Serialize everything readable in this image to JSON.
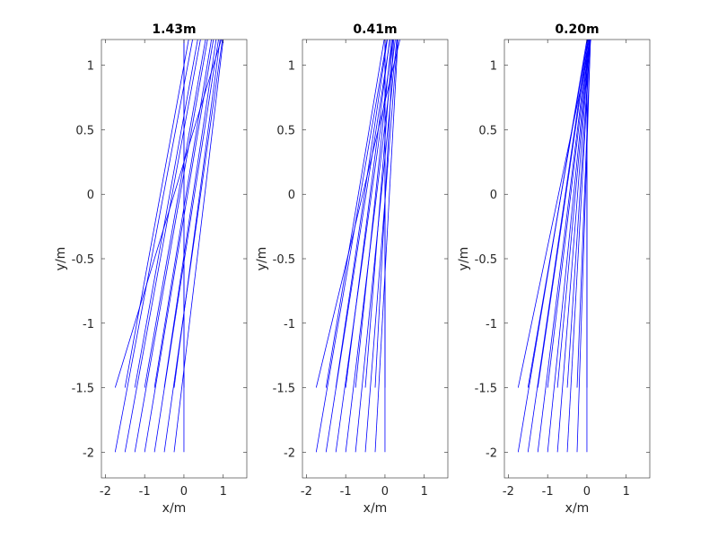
{
  "chart_data": [
    {
      "type": "line",
      "title": "1.43m",
      "xlabel": "x/m",
      "ylabel": "y/m",
      "xlim": [
        -2.1,
        1.6
      ],
      "ylim": [
        -2.2,
        1.2
      ],
      "xticks": [
        -2,
        -1,
        0,
        1
      ],
      "yticks": [
        -2,
        -1.5,
        -1,
        -0.5,
        0,
        0.5,
        1
      ],
      "xtick_labels": [
        "-2",
        "-1",
        "0",
        "1"
      ],
      "ytick_labels": [
        "-2",
        "-1.5",
        "-1",
        "-0.5",
        "0",
        "0.5",
        "1"
      ],
      "grid": false,
      "line_color": "#0000ff",
      "series": [
        {
          "x": [
            -1.75,
            0.95
          ],
          "y": [
            -1.5,
            1.2
          ]
        },
        {
          "x": [
            -1.75,
            0.22
          ],
          "y": [
            -2.0,
            1.2
          ]
        },
        {
          "x": [
            -1.5,
            0.42
          ],
          "y": [
            -2.0,
            1.2
          ]
        },
        {
          "x": [
            -1.25,
            0.6
          ],
          "y": [
            -2.0,
            1.2
          ]
        },
        {
          "x": [
            -1.0,
            0.75
          ],
          "y": [
            -2.0,
            1.2
          ]
        },
        {
          "x": [
            -0.75,
            0.88
          ],
          "y": [
            -2.0,
            1.2
          ]
        },
        {
          "x": [
            -0.5,
            0.98
          ],
          "y": [
            -2.0,
            1.2
          ]
        },
        {
          "x": [
            -0.25,
            1.0
          ],
          "y": [
            -2.0,
            1.2
          ]
        },
        {
          "x": [
            0.0,
            0.0
          ],
          "y": [
            -2.0,
            1.2
          ]
        },
        {
          "x": [
            -1.5,
            0.12
          ],
          "y": [
            -1.5,
            1.2
          ]
        },
        {
          "x": [
            -1.25,
            0.35
          ],
          "y": [
            -1.5,
            1.2
          ]
        },
        {
          "x": [
            -1.0,
            0.55
          ],
          "y": [
            -1.5,
            1.2
          ]
        },
        {
          "x": [
            -0.75,
            0.7
          ],
          "y": [
            -1.5,
            1.2
          ]
        },
        {
          "x": [
            -0.5,
            0.82
          ],
          "y": [
            -1.5,
            1.2
          ]
        },
        {
          "x": [
            -0.25,
            0.92
          ],
          "y": [
            -1.5,
            1.2
          ]
        },
        {
          "x": [
            0.0,
            0.0
          ],
          "y": [
            -1.5,
            1.2
          ]
        }
      ]
    },
    {
      "type": "line",
      "title": "0.41m",
      "xlabel": "x/m",
      "ylabel": "y/m",
      "xlim": [
        -2.1,
        1.6
      ],
      "ylim": [
        -2.2,
        1.2
      ],
      "xticks": [
        -2,
        -1,
        0,
        1
      ],
      "yticks": [
        -2,
        -1.5,
        -1,
        -0.5,
        0,
        0.5,
        1
      ],
      "xtick_labels": [
        "-2",
        "-1",
        "0",
        "1"
      ],
      "ytick_labels": [
        "-2",
        "-1.5",
        "-1",
        "-0.5",
        "0",
        "0.5",
        "1"
      ],
      "grid": false,
      "line_color": "#0000ff",
      "series": [
        {
          "x": [
            -1.75,
            0.38
          ],
          "y": [
            -1.5,
            1.2
          ]
        },
        {
          "x": [
            -1.75,
            0.05
          ],
          "y": [
            -2.0,
            1.2
          ]
        },
        {
          "x": [
            -1.5,
            0.13
          ],
          "y": [
            -2.0,
            1.2
          ]
        },
        {
          "x": [
            -1.25,
            0.2
          ],
          "y": [
            -2.0,
            1.2
          ]
        },
        {
          "x": [
            -1.0,
            0.26
          ],
          "y": [
            -2.0,
            1.2
          ]
        },
        {
          "x": [
            -0.75,
            0.3
          ],
          "y": [
            -2.0,
            1.2
          ]
        },
        {
          "x": [
            -0.5,
            0.32
          ],
          "y": [
            -2.0,
            1.2
          ]
        },
        {
          "x": [
            -0.25,
            0.33
          ],
          "y": [
            -2.0,
            1.2
          ]
        },
        {
          "x": [
            0.0,
            0.0
          ],
          "y": [
            -2.0,
            1.2
          ]
        },
        {
          "x": [
            -1.5,
            -0.02
          ],
          "y": [
            -1.5,
            1.2
          ]
        },
        {
          "x": [
            -1.25,
            0.06
          ],
          "y": [
            -1.5,
            1.2
          ]
        },
        {
          "x": [
            -1.0,
            0.12
          ],
          "y": [
            -1.5,
            1.2
          ]
        },
        {
          "x": [
            -0.75,
            0.17
          ],
          "y": [
            -1.5,
            1.2
          ]
        },
        {
          "x": [
            -0.5,
            0.2
          ],
          "y": [
            -1.5,
            1.2
          ]
        },
        {
          "x": [
            -0.25,
            0.22
          ],
          "y": [
            -1.5,
            1.2
          ]
        },
        {
          "x": [
            0.0,
            0.0
          ],
          "y": [
            -1.5,
            1.2
          ]
        }
      ]
    },
    {
      "type": "line",
      "title": "0.20m",
      "xlabel": "x/m",
      "ylabel": "y/m",
      "xlim": [
        -2.1,
        1.6
      ],
      "ylim": [
        -2.2,
        1.2
      ],
      "xticks": [
        -2,
        -1,
        0,
        1
      ],
      "yticks": [
        -2,
        -1.5,
        -1,
        -0.5,
        0,
        0.5,
        1
      ],
      "xtick_labels": [
        "-2",
        "-1",
        "0",
        "1"
      ],
      "ytick_labels": [
        "-2",
        "-1.5",
        "-1",
        "-0.5",
        "0",
        "0.5",
        "1"
      ],
      "grid": false,
      "line_color": "#0000ff",
      "series": [
        {
          "x": [
            -1.75,
            0.1
          ],
          "y": [
            -1.5,
            1.2
          ]
        },
        {
          "x": [
            -1.75,
            0.0
          ],
          "y": [
            -2.0,
            1.2
          ]
        },
        {
          "x": [
            -1.5,
            0.02
          ],
          "y": [
            -2.0,
            1.2
          ]
        },
        {
          "x": [
            -1.25,
            0.04
          ],
          "y": [
            -2.0,
            1.2
          ]
        },
        {
          "x": [
            -1.0,
            0.06
          ],
          "y": [
            -2.0,
            1.2
          ]
        },
        {
          "x": [
            -0.75,
            0.07
          ],
          "y": [
            -2.0,
            1.2
          ]
        },
        {
          "x": [
            -0.5,
            0.08
          ],
          "y": [
            -2.0,
            1.2
          ]
        },
        {
          "x": [
            -0.25,
            0.09
          ],
          "y": [
            -2.0,
            1.2
          ]
        },
        {
          "x": [
            0.0,
            0.0
          ],
          "y": [
            -2.0,
            1.2
          ]
        },
        {
          "x": [
            -1.5,
            0.02
          ],
          "y": [
            -1.5,
            1.2
          ]
        },
        {
          "x": [
            -1.25,
            0.04
          ],
          "y": [
            -1.5,
            1.2
          ]
        },
        {
          "x": [
            -1.0,
            0.06
          ],
          "y": [
            -1.5,
            1.2
          ]
        },
        {
          "x": [
            -0.75,
            0.07
          ],
          "y": [
            -1.5,
            1.2
          ]
        },
        {
          "x": [
            -0.5,
            0.08
          ],
          "y": [
            -1.5,
            1.2
          ]
        },
        {
          "x": [
            -0.25,
            0.09
          ],
          "y": [
            -1.5,
            1.2
          ]
        },
        {
          "x": [
            0.0,
            0.0
          ],
          "y": [
            -1.5,
            1.2
          ]
        }
      ]
    }
  ]
}
